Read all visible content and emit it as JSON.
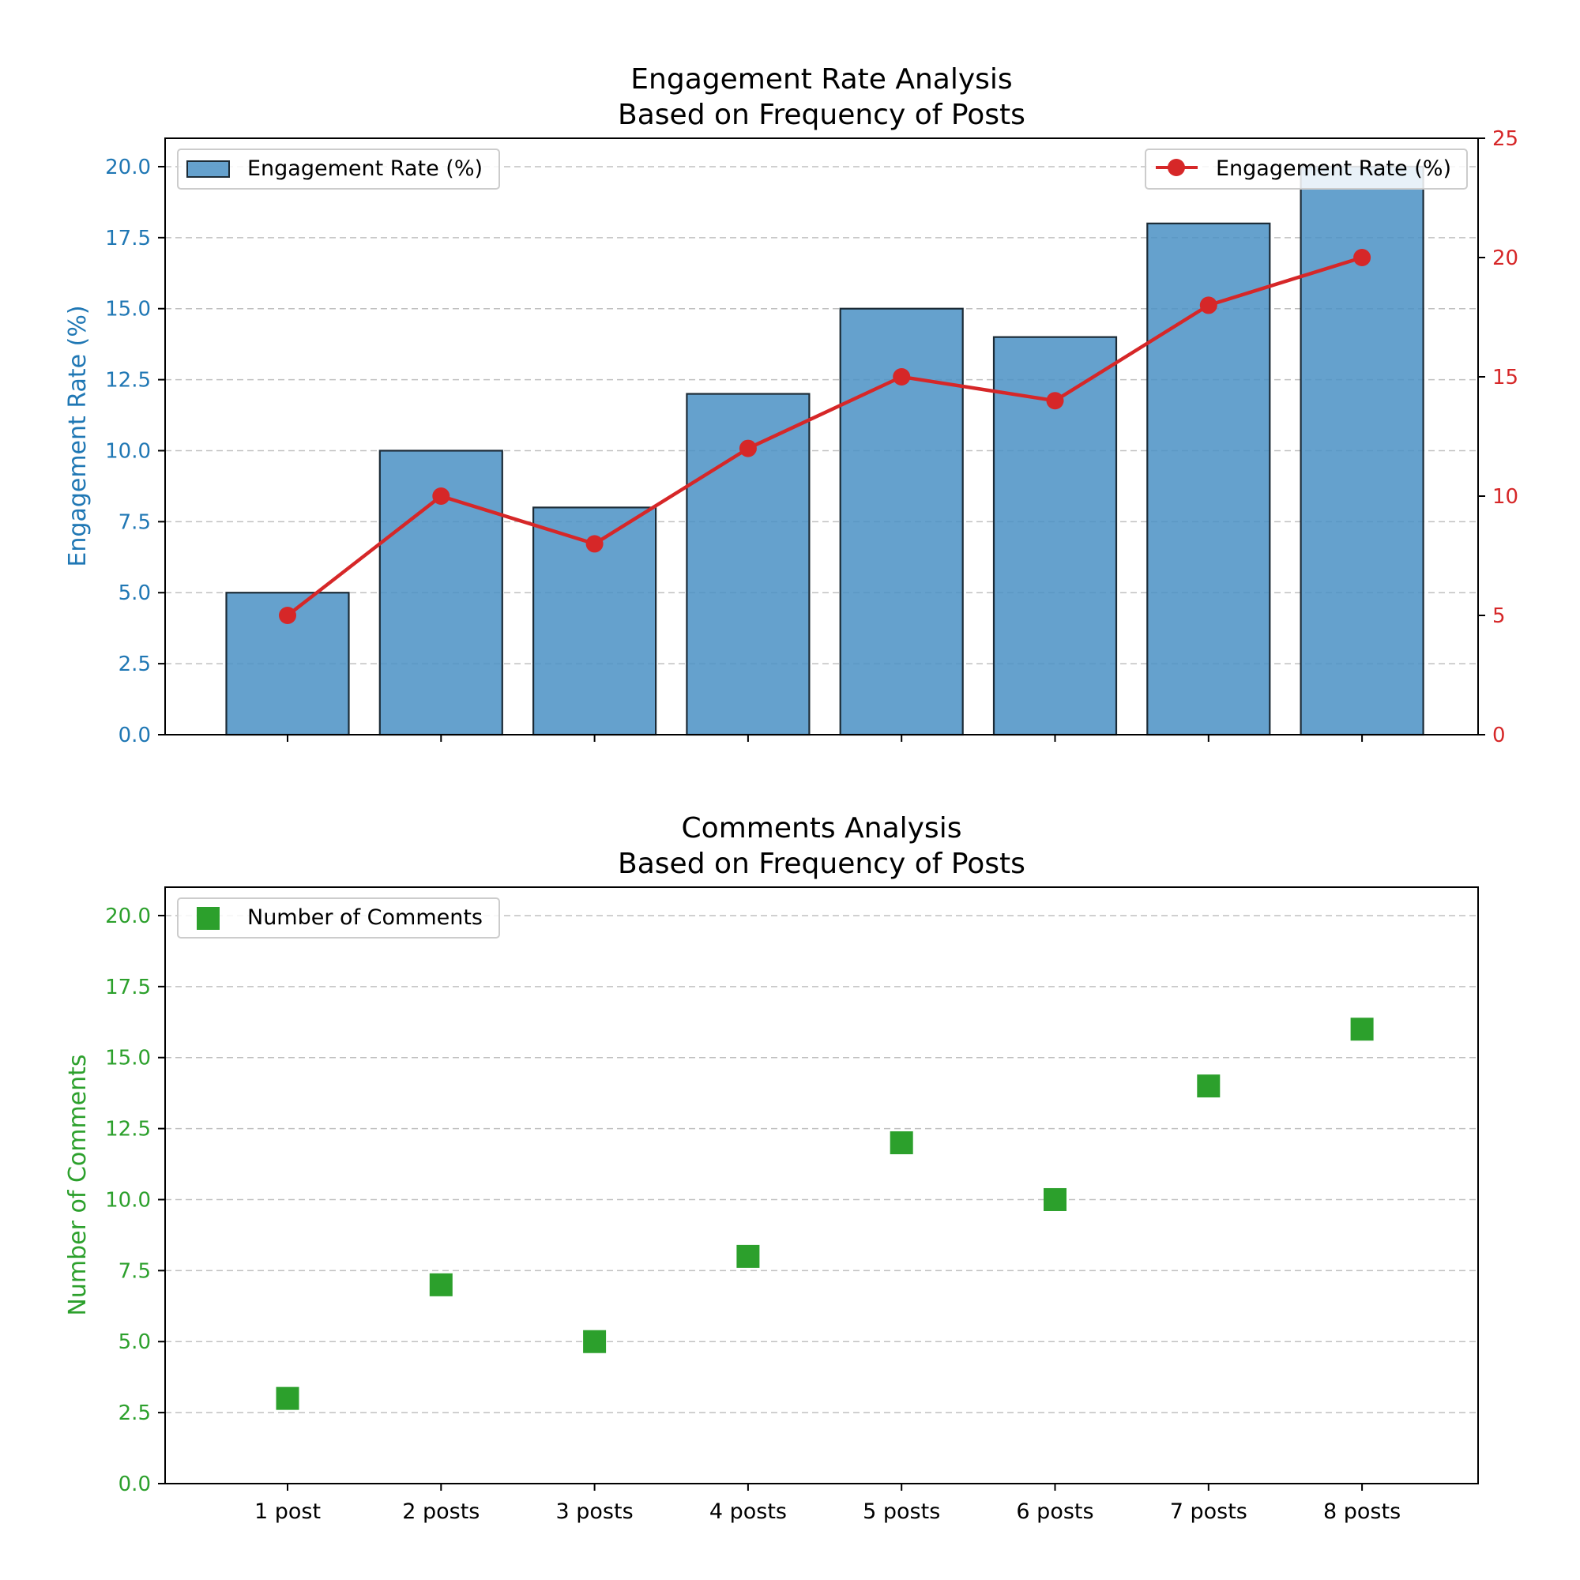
{
  "chart_data": [
    {
      "type": "bar",
      "title": "Engagement Rate Analysis",
      "subtitle": "Based on Frequency of Posts",
      "categories": [
        "1 post",
        "2 posts",
        "3 posts",
        "4 posts",
        "5 posts",
        "6 posts",
        "7 posts",
        "8 posts"
      ],
      "xlabel": "",
      "ylabel": "Engagement Rate (%)",
      "ylim": [
        0,
        21
      ],
      "yticks": [
        0.0,
        2.5,
        5.0,
        7.5,
        10.0,
        12.5,
        15.0,
        17.5,
        20.0
      ],
      "grid": true,
      "series": [
        {
          "name": "Engagement Rate (%)",
          "kind": "bar",
          "axis": "left",
          "values": [
            5,
            10,
            8,
            12,
            15,
            14,
            18,
            20
          ],
          "color": "#4a90c4"
        },
        {
          "name": "Engagement Rate (%)",
          "kind": "line",
          "axis": "right",
          "values": [
            5,
            10,
            8,
            12,
            15,
            14,
            18,
            20
          ],
          "color": "#d62728"
        }
      ],
      "y2lim": [
        0,
        25
      ],
      "y2ticks": [
        0,
        5,
        10,
        15,
        20,
        25
      ],
      "legend_left": "upper-left",
      "legend_right": "upper-right",
      "colors": {
        "left_axis": "#1f77b4",
        "right_axis": "#d62728"
      }
    },
    {
      "type": "scatter",
      "title": "Comments Analysis",
      "subtitle": "Based on Frequency of Posts",
      "categories": [
        "1 post",
        "2 posts",
        "3 posts",
        "4 posts",
        "5 posts",
        "6 posts",
        "7 posts",
        "8 posts"
      ],
      "xlabel": "",
      "ylabel": "Number of Comments",
      "ylim": [
        0,
        21
      ],
      "yticks": [
        0.0,
        2.5,
        5.0,
        7.5,
        10.0,
        12.5,
        15.0,
        17.5,
        20.0
      ],
      "grid": true,
      "series": [
        {
          "name": "Number of Comments",
          "kind": "square-marker",
          "values": [
            3,
            7,
            5,
            8,
            12,
            10,
            14,
            16
          ],
          "color": "#2ca02c"
        }
      ],
      "legend": "upper-left",
      "colors": {
        "left_axis": "#2ca02c"
      }
    }
  ]
}
